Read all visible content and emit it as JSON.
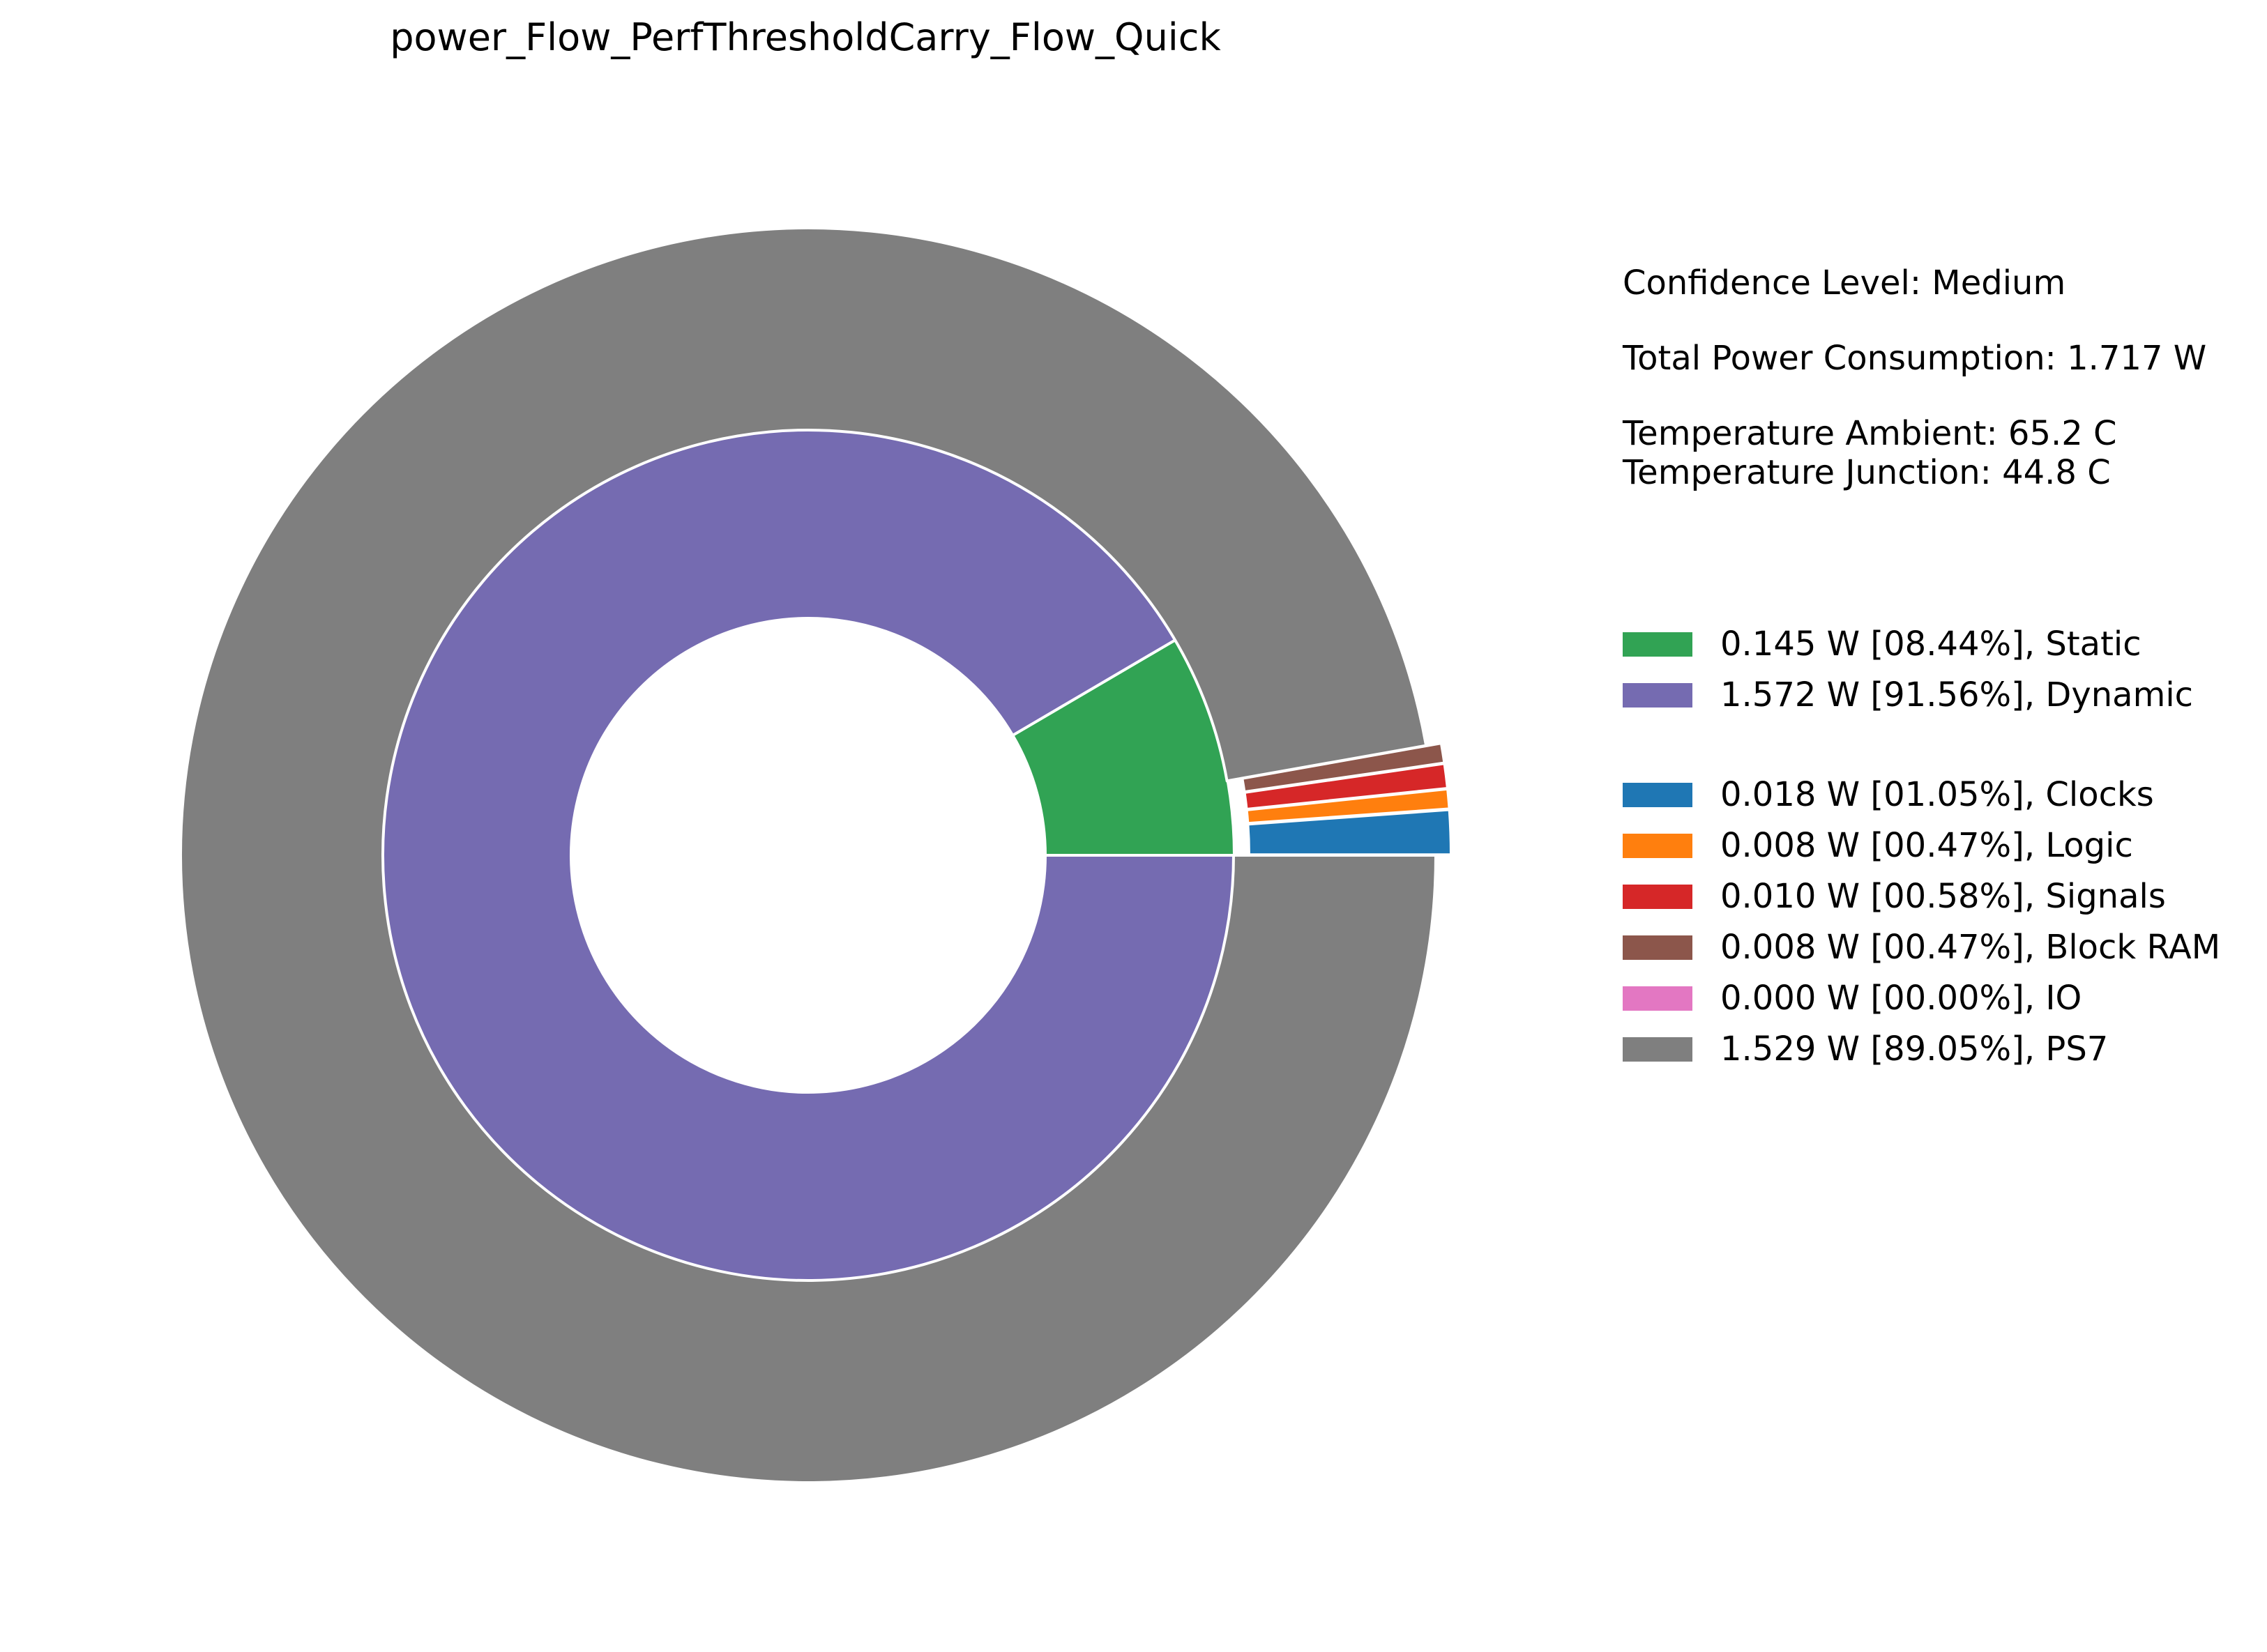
{
  "chart_data": {
    "type": "pie",
    "title": "power_Flow_PerfThresholdCarry_Flow_Quick",
    "info": {
      "confidence": "Confidence Level: Medium",
      "total_power": "Total Power Consumption: 1.717 W",
      "temp_ambient": "Temperature Ambient: 65.2 C",
      "temp_junction": "Temperature Junction: 44.8 C"
    },
    "inner_ring": [
      {
        "label": "0.145 W [08.44%], Static",
        "value": 0.145,
        "color": "#31a354"
      },
      {
        "label": "1.572 W [91.56%], Dynamic",
        "value": 1.572,
        "color": "#756bb1"
      }
    ],
    "outer_ring": [
      {
        "label": "0.018 W [01.05%], Clocks",
        "value": 0.018,
        "color": "#1f77b4"
      },
      {
        "label": "0.008 W [00.47%], Logic",
        "value": 0.008,
        "color": "#ff7f0e"
      },
      {
        "label": "0.010 W [00.58%], Signals",
        "value": 0.01,
        "color": "#d62728"
      },
      {
        "label": "0.008 W [00.47%], Block RAM",
        "value": 0.008,
        "color": "#8c564b"
      },
      {
        "label": "0.000 W [00.00%], IO",
        "value": 0.0,
        "color": "#e377c2"
      },
      {
        "label": "1.529 W [89.05%], PS7",
        "value": 1.529,
        "color": "#7f7f7f"
      }
    ],
    "legend_position": "right"
  }
}
